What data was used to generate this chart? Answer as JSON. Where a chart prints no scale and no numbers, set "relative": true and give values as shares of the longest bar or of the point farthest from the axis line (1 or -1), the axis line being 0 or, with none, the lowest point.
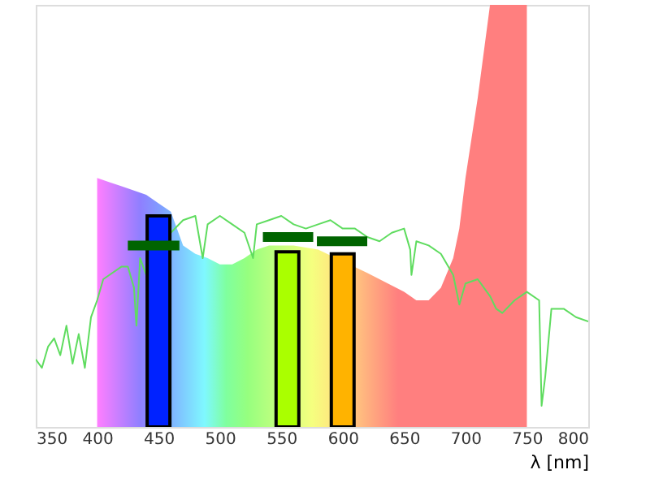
{
  "chart_data": {
    "type": "area",
    "relative": true,
    "xlabel": "λ [nm]",
    "xlim": [
      350,
      800
    ],
    "xticks": [
      350,
      400,
      450,
      500,
      550,
      600,
      650,
      700,
      750,
      800
    ],
    "grid": false,
    "series": [
      {
        "x": [
          400,
          410,
          420,
          430,
          440,
          450,
          460,
          470,
          480,
          490,
          500,
          510,
          520,
          530,
          540,
          560,
          580,
          620,
          630,
          650,
          660,
          670,
          680,
          690,
          695,
          700,
          710,
          715,
          720,
          750
        ],
        "values": [
          0.59,
          0.58,
          0.57,
          0.56,
          0.55,
          0.53,
          0.51,
          0.43,
          0.41,
          0.4,
          0.385,
          0.385,
          0.4,
          0.42,
          0.43,
          0.43,
          0.42,
          0.365,
          0.35,
          0.32,
          0.3,
          0.3,
          0.33,
          0.4,
          0.47,
          0.59,
          0.78,
          0.89,
          1.0,
          1.0
        ]
      },
      {
        "type": "line",
        "color": "#5fdc5f",
        "x": [
          350,
          355,
          360,
          365,
          370,
          375,
          380,
          385,
          390,
          395,
          400,
          405,
          410,
          420,
          425,
          430,
          432,
          435,
          440,
          450,
          460,
          470,
          480,
          486,
          490,
          500,
          510,
          520,
          527,
          530,
          540,
          550,
          560,
          570,
          580,
          590,
          600,
          610,
          620,
          630,
          640,
          650,
          655,
          656,
          660,
          670,
          680,
          690,
          695,
          700,
          710,
          720,
          725,
          730,
          740,
          750,
          760,
          762,
          765,
          770,
          780,
          790,
          800
        ],
        "values": [
          0.16,
          0.14,
          0.19,
          0.21,
          0.17,
          0.24,
          0.15,
          0.22,
          0.14,
          0.26,
          0.3,
          0.35,
          0.36,
          0.38,
          0.38,
          0.33,
          0.24,
          0.4,
          0.36,
          null,
          0.46,
          0.49,
          0.5,
          0.4,
          0.48,
          0.5,
          0.48,
          0.46,
          0.4,
          0.48,
          0.49,
          0.5,
          0.48,
          0.47,
          0.48,
          0.49,
          0.47,
          0.47,
          0.45,
          0.44,
          0.46,
          0.47,
          0.42,
          0.36,
          0.44,
          0.43,
          0.41,
          0.36,
          0.29,
          0.34,
          0.35,
          0.31,
          0.28,
          0.27,
          0.3,
          0.32,
          0.3,
          0.05,
          0.12,
          0.28,
          0.28,
          0.26,
          0.25
        ]
      },
      {
        "type": "bar",
        "x": [
          450,
          555,
          600
        ],
        "colors": [
          "#0022ff",
          "#aaff00",
          "#ffb300"
        ],
        "values": [
          0.5,
          0.415,
          0.41
        ]
      },
      {
        "type": "step",
        "color": "#006400",
        "x": [
          425,
          467
        ],
        "values": [
          0.43,
          0.43
        ]
      },
      {
        "type": "step",
        "color": "#006400",
        "x": [
          535,
          576
        ],
        "values": [
          0.45,
          0.45
        ]
      },
      {
        "type": "step",
        "color": "#006400",
        "x": [
          579,
          620
        ],
        "values": [
          0.44,
          0.44
        ]
      }
    ]
  }
}
